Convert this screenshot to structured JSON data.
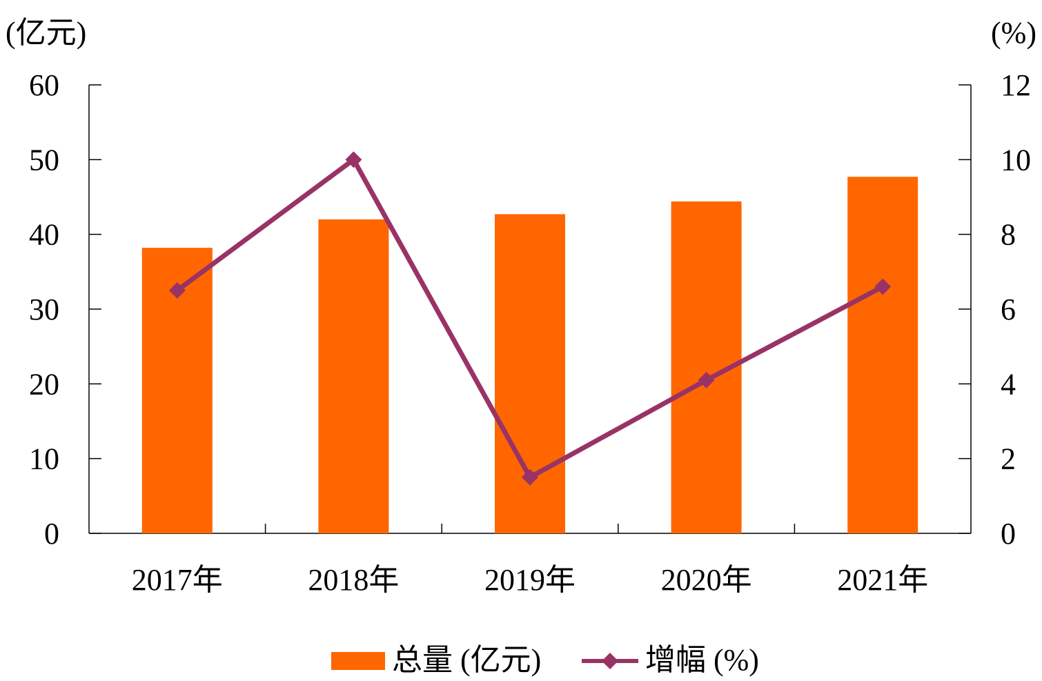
{
  "chart_data": {
    "type": "bar",
    "categories": [
      "2017年",
      "2018年",
      "2019年",
      "2020年",
      "2021年"
    ],
    "y_left": {
      "unit_label": "(亿元)",
      "ylim": [
        0,
        60
      ],
      "ticks": [
        "0",
        "10",
        "20",
        "30",
        "40",
        "50",
        "60"
      ]
    },
    "y_right": {
      "unit_label": "(%)",
      "ylim": [
        0,
        12
      ],
      "ticks": [
        "0",
        "2",
        "4",
        "6",
        "8",
        "10",
        "12"
      ]
    },
    "series": [
      {
        "name": "总量 (亿元)",
        "type": "bar",
        "axis": "left",
        "values": [
          38.2,
          42.0,
          42.7,
          44.4,
          47.7
        ],
        "color": "#ff6600"
      },
      {
        "name": "增幅 (%)",
        "type": "line",
        "axis": "right",
        "values": [
          6.5,
          10.0,
          1.5,
          4.1,
          6.6
        ],
        "color": "#993366"
      }
    ],
    "legend_position": "bottom-center",
    "grid": false
  }
}
